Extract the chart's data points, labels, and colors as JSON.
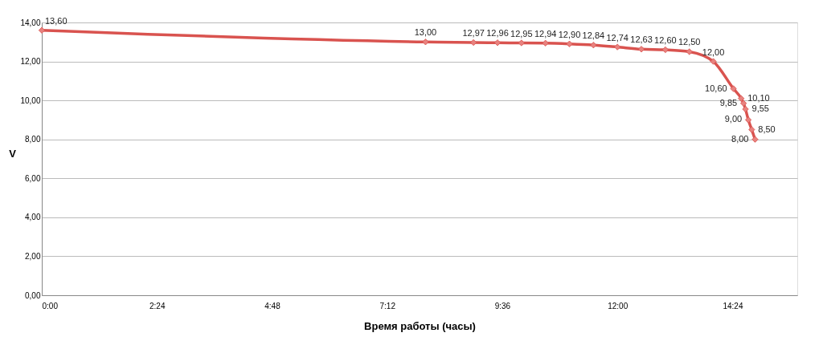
{
  "chart_data": {
    "type": "line",
    "xlabel": "Время работы (часы)",
    "ylabel": "V",
    "x": [
      0,
      8,
      9,
      9.5,
      10,
      10.5,
      11,
      11.5,
      12,
      12.5,
      13,
      13.5,
      14,
      14.42,
      14.58,
      14.63,
      14.67,
      14.73,
      14.8,
      14.87
    ],
    "series": [
      {
        "color": "#d9534f",
        "values": [
          13.6,
          13.0,
          12.97,
          12.96,
          12.95,
          12.94,
          12.9,
          12.84,
          12.74,
          12.63,
          12.6,
          12.5,
          12.0,
          10.6,
          10.1,
          9.85,
          9.55,
          9.0,
          8.5,
          8.0
        ],
        "value_labels": [
          "13,60",
          "13,00",
          "12,97",
          "12,96",
          "12,95",
          "12,94",
          "12,90",
          "12,84",
          "12,74",
          "12,63",
          "12,60",
          "12,50",
          "12,00",
          "10,60",
          "10,10",
          "9,85",
          "9,55",
          "9,00",
          "8,50",
          "8,00"
        ]
      }
    ],
    "xlim": [
      0,
      15.75
    ],
    "xticks": [
      {
        "value": 0,
        "label": "0:00"
      },
      {
        "value": 2.4,
        "label": "2:24"
      },
      {
        "value": 4.8,
        "label": "4:48"
      },
      {
        "value": 7.2,
        "label": "7:12"
      },
      {
        "value": 9.6,
        "label": "9:36"
      },
      {
        "value": 12,
        "label": "12:00"
      },
      {
        "value": 14.4,
        "label": "14:24"
      }
    ],
    "ylim": [
      0,
      14
    ],
    "yticks": [
      {
        "value": 0,
        "label": "0,00"
      },
      {
        "value": 2,
        "label": "2,00"
      },
      {
        "value": 4,
        "label": "4,00"
      },
      {
        "value": 6,
        "label": "6,00"
      },
      {
        "value": 8,
        "label": "8,00"
      },
      {
        "value": 10,
        "label": "10,00"
      },
      {
        "value": 12,
        "label": "12,00"
      },
      {
        "value": 14,
        "label": "14,00"
      }
    ],
    "grid": "y",
    "marker": "diamond",
    "line_style": "solid"
  }
}
